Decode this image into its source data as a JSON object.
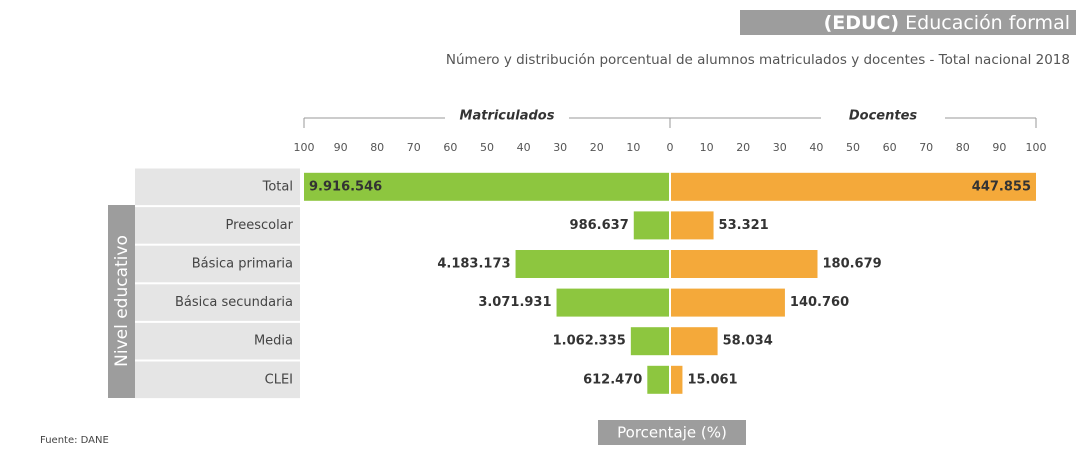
{
  "chart_data": {
    "type": "butterfly",
    "title_code": "(EDUC)",
    "title": "Educación formal",
    "subtitle": "Número y distribución porcentual de alumnos matriculados y docentes - Total nacional 2018",
    "categories": [
      "Total",
      "Preescolar",
      "Básica primaria",
      "Básica secundaria",
      "Media",
      "CLEI"
    ],
    "y_label": "Nivel educativo",
    "x_label": "Porcentaje (%)",
    "source": "Fuente: DANE",
    "xlim": [
      0,
      100
    ],
    "series": [
      {
        "name": "Matriculados",
        "side": "left",
        "color": "#8dc63f",
        "values": [
          100,
          9.9,
          42.2,
          31.0,
          10.7,
          6.2
        ],
        "counts": [
          "9.916.546",
          "986.637",
          "4.183.173",
          "3.071.931",
          "1.062.335",
          "612.470"
        ],
        "xticks": [
          0,
          10,
          20,
          30,
          40,
          50,
          60,
          70,
          80,
          90,
          100
        ]
      },
      {
        "name": "Docentes",
        "side": "right",
        "color": "#f4a93a",
        "values": [
          100,
          11.9,
          40.3,
          31.4,
          13.0,
          3.4
        ],
        "counts": [
          "447.855",
          "53.321",
          "180.679",
          "140.760",
          "58.034",
          "15.061"
        ],
        "xticks": [
          10,
          20,
          30,
          40,
          50,
          60,
          70,
          80,
          90,
          100
        ]
      }
    ]
  }
}
